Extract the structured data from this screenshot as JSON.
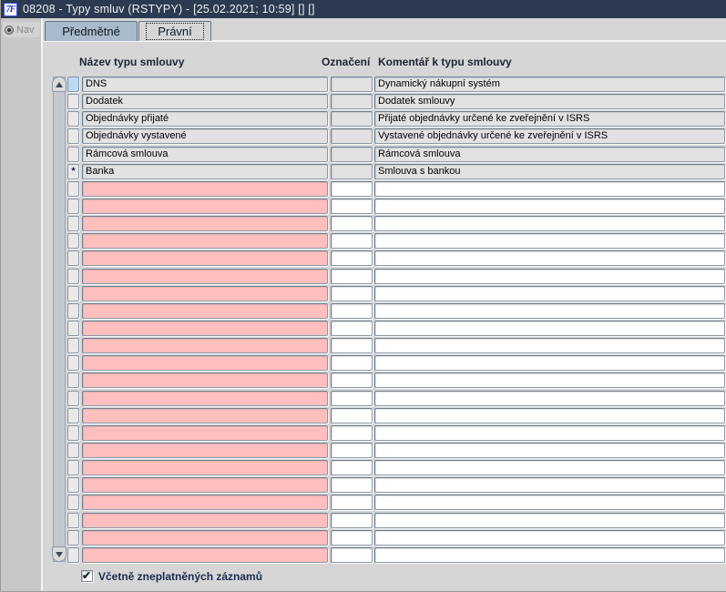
{
  "window": {
    "title": "08208 - Typy smluv (RSTYPY) - [25.02.2021; 10:59]  [] []",
    "icon_text": "7F"
  },
  "nav": {
    "label": "Nav"
  },
  "tabs": [
    {
      "label": "Předmětné",
      "active": true
    },
    {
      "label": "Právní",
      "active": false,
      "focused": true
    }
  ],
  "grid": {
    "columns": [
      {
        "key": "nazev",
        "label": "Název typu smlouvy"
      },
      {
        "key": "oznaceni",
        "label": "Označení"
      },
      {
        "key": "komentar",
        "label": "Komentář k typu smlouvy"
      }
    ],
    "rows": [
      {
        "selector": "",
        "nazev": "DNS",
        "oznaceni": "",
        "komentar": "Dynamický nákupní systém"
      },
      {
        "selector": "",
        "nazev": "Dodatek",
        "oznaceni": "",
        "komentar": "Dodatek smlouvy"
      },
      {
        "selector": "",
        "nazev": "Objednávky přijaté",
        "oznaceni": "",
        "komentar": "Přijaté objednávky určené ke zveřejnění v ISRS"
      },
      {
        "selector": "",
        "nazev": "Objednávky vystavené",
        "oznaceni": "",
        "komentar": "Vystavené objednávky určené ke zveřejnění v ISRS"
      },
      {
        "selector": "",
        "nazev": "Rámcová smlouva",
        "oznaceni": "",
        "komentar": "Rámcová smlouva"
      },
      {
        "selector": "*",
        "nazev": "Banka",
        "oznaceni": "",
        "komentar": "Smlouva s bankou"
      }
    ],
    "empty_row_count": 22,
    "current_row_index": 0
  },
  "footer": {
    "checkbox_label": "Včetně zneplatněných záznamů",
    "checked": true,
    "check_glyph": "✔"
  },
  "colors": {
    "titlebar": "#2b3a50",
    "panel": "#d6d6d6",
    "tab_active": "#a8bacb",
    "field_filled": "#e2e2e2",
    "field_required_empty": "#ffbfbf",
    "field_empty": "#ffffff",
    "selector_current": "#bcd9f6"
  }
}
